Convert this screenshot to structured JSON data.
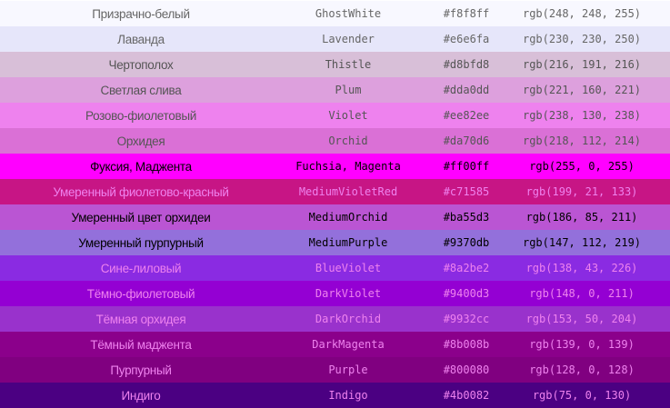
{
  "rows": [
    {
      "ru": "Призрачно-белый",
      "name": "GhostWhite",
      "hex": "#f8f8ff",
      "rgb": "rgb(248, 248, 255)",
      "text": "#666666"
    },
    {
      "ru": "Лаванда",
      "name": "Lavender",
      "hex": "#e6e6fa",
      "rgb": "rgb(230, 230, 250)",
      "text": "#666666"
    },
    {
      "ru": "Чертополох",
      "name": "Thistle",
      "hex": "#d8bfd8",
      "rgb": "rgb(216, 191, 216)",
      "text": "#555555"
    },
    {
      "ru": "Светлая слива",
      "name": "Plum",
      "hex": "#dda0dd",
      "rgb": "rgb(221, 160, 221)",
      "text": "#555555"
    },
    {
      "ru": "Розово-фиолетовый",
      "name": "Violet",
      "hex": "#ee82ee",
      "rgb": "rgb(238, 130, 238)",
      "text": "#555555"
    },
    {
      "ru": "Орхидея",
      "name": "Orchid",
      "hex": "#da70d6",
      "rgb": "rgb(218, 112, 214)",
      "text": "#555555"
    },
    {
      "ru": "Фуксия, Маджента",
      "name": "Fuchsia, Magenta",
      "hex": "#ff00ff",
      "rgb": "rgb(255, 0, 255)",
      "text": "#000000"
    },
    {
      "ru": "Умеренный фиолетово-красный",
      "name": "MediumVioletRed",
      "hex": "#c71585",
      "rgb": "rgb(199, 21, 133)",
      "text": "#ee82ee"
    },
    {
      "ru": "Умеренный цвет орхидеи",
      "name": "MediumOrchid",
      "hex": "#ba55d3",
      "rgb": "rgb(186, 85, 211)",
      "text": "#000000"
    },
    {
      "ru": "Умеренный пурпурный",
      "name": "MediumPurple",
      "hex": "#9370db",
      "rgb": "rgb(147, 112, 219)",
      "text": "#000000"
    },
    {
      "ru": "Сине-лиловый",
      "name": "BlueViolet",
      "hex": "#8a2be2",
      "rgb": "rgb(138, 43, 226)",
      "text": "#ee82ee"
    },
    {
      "ru": "Тёмно-фиолетовый",
      "name": "DarkViolet",
      "hex": "#9400d3",
      "rgb": "rgb(148, 0, 211)",
      "text": "#ee82ee"
    },
    {
      "ru": "Тёмная орхидея",
      "name": "DarkOrchid",
      "hex": "#9932cc",
      "rgb": "rgb(153, 50, 204)",
      "text": "#ee82ee"
    },
    {
      "ru": "Тёмный маджента",
      "name": "DarkMagenta",
      "hex": "#8b008b",
      "rgb": "rgb(139, 0, 139)",
      "text": "#ee82ee"
    },
    {
      "ru": "Пурпурный",
      "name": "Purple",
      "hex": "#800080",
      "rgb": "rgb(128, 0, 128)",
      "text": "#ee82ee"
    },
    {
      "ru": "Индиго",
      "name": "Indigo",
      "hex": "#4b0082",
      "rgb": "rgb(75, 0, 130)",
      "text": "#ee82ee"
    }
  ]
}
